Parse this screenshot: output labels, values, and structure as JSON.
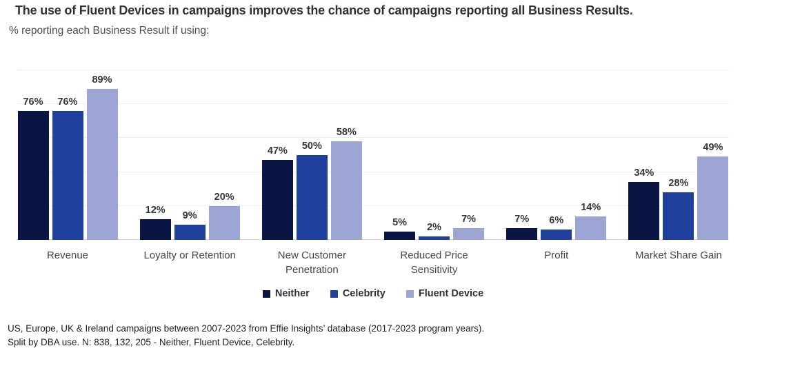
{
  "title": "The use of Fluent Devices in campaigns improves the chance of campaigns reporting all Business Results.",
  "subtitle": "% reporting each Business Result if using:",
  "chart_data": {
    "type": "bar",
    "title": "The use of Fluent Devices in campaigns improves the chance of campaigns reporting all Business Results.",
    "subtitle": "% reporting each Business Result if using:",
    "categories": [
      "Revenue",
      "Loyalty or Retention",
      "New Customer\nPenetration",
      "Reduced Price\nSensitivity",
      "Profit",
      "Market Share Gain"
    ],
    "series": [
      {
        "name": "Neither",
        "color": "#0a1543",
        "values": [
          76,
          12,
          47,
          5,
          7,
          34
        ]
      },
      {
        "name": "Celebrity",
        "color": "#1f409d",
        "values": [
          76,
          9,
          50,
          2,
          6,
          28
        ]
      },
      {
        "name": "Fluent Device",
        "color": "#9ca5d3",
        "values": [
          89,
          20,
          58,
          7,
          14,
          49
        ]
      }
    ],
    "value_suffix": "%",
    "xlabel": "",
    "ylabel": "",
    "ylim": [
      0,
      100
    ],
    "grid": true,
    "grid_step": 20,
    "legend_position": "bottom"
  },
  "footer": {
    "line1": "US, Europe, UK & Ireland campaigns between 2007-2023 from Effie Insights’ database  (2017-2023 program years).",
    "line2": "Split by DBA use. N: 838, 132, 205 - Neither, Fluent Device, Celebrity."
  }
}
